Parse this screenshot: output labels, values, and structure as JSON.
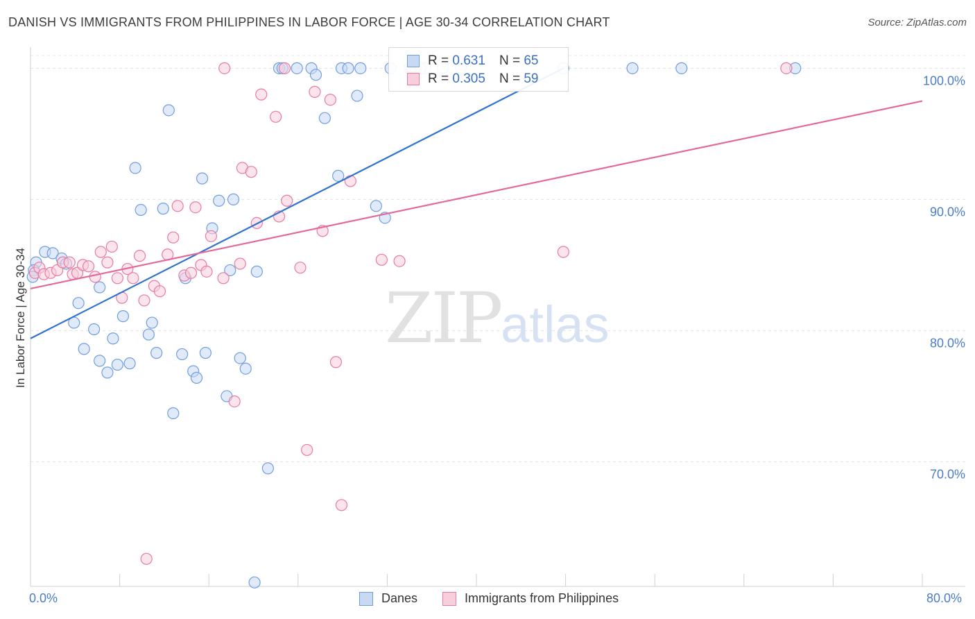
{
  "title": "DANISH VS IMMIGRANTS FROM PHILIPPINES IN LABOR FORCE | AGE 30-34 CORRELATION CHART",
  "source": "Source: ZipAtlas.com",
  "watermark": {
    "zip": "ZIP",
    "atlas": "atlas"
  },
  "colors": {
    "danes": "#6f9de0",
    "danes_fill": "#c7d9f3",
    "phil": "#e87aa0",
    "phil_fill": "#f8cedc",
    "blue_text": "#3a6fc4"
  },
  "legend": {
    "danes": {
      "r_label": "R = ",
      "r": "0.631",
      "n_label": "N = ",
      "n": "65"
    },
    "phil": {
      "r_label": "R = ",
      "r": "0.305",
      "n_label": "N = ",
      "n": "59"
    }
  },
  "bottom_legend": {
    "danes": "Danes",
    "phil": "Immigrants from Philippines"
  },
  "chart_data": {
    "type": "scatter",
    "title": "DANISH VS IMMIGRANTS FROM PHILIPPINES IN LABOR FORCE | AGE 30-34 CORRELATION CHART",
    "xlabel": "",
    "ylabel": "In Labor Force | Age 30-34",
    "xlim": [
      0,
      80
    ],
    "ylim": [
      60.5,
      101.5
    ],
    "x_ticks": [
      "0.0%",
      "80.0%"
    ],
    "y_ticks": [
      {
        "value": 70,
        "label": "70.0%"
      },
      {
        "value": 80,
        "label": "80.0%"
      },
      {
        "value": 90,
        "label": "90.0%"
      },
      {
        "value": 100,
        "label": "100.0%"
      }
    ],
    "grid": true,
    "series": [
      {
        "name": "Danes",
        "r": 0.631,
        "n": 65,
        "trend": {
          "x": [
            0,
            47.8
          ],
          "y": [
            79.4,
            100.0
          ]
        },
        "points": [
          [
            0.5,
            85.2
          ],
          [
            0.3,
            84.6
          ],
          [
            0.2,
            84.1
          ],
          [
            1.3,
            86.0
          ],
          [
            2.0,
            85.9
          ],
          [
            2.8,
            85.5
          ],
          [
            3.2,
            85.1
          ],
          [
            4.3,
            82.1
          ],
          [
            3.9,
            80.6
          ],
          [
            5.7,
            80.1
          ],
          [
            4.8,
            78.6
          ],
          [
            6.2,
            83.3
          ],
          [
            6.2,
            77.7
          ],
          [
            6.9,
            76.8
          ],
          [
            7.4,
            79.4
          ],
          [
            7.8,
            77.4
          ],
          [
            8.3,
            81.1
          ],
          [
            8.9,
            77.5
          ],
          [
            9.4,
            92.4
          ],
          [
            9.9,
            89.2
          ],
          [
            10.6,
            79.7
          ],
          [
            10.9,
            80.6
          ],
          [
            11.3,
            78.3
          ],
          [
            11.9,
            89.3
          ],
          [
            12.4,
            96.8
          ],
          [
            12.8,
            73.7
          ],
          [
            13.6,
            78.2
          ],
          [
            13.9,
            84.0
          ],
          [
            14.6,
            76.9
          ],
          [
            14.9,
            76.4
          ],
          [
            15.4,
            91.6
          ],
          [
            15.7,
            78.3
          ],
          [
            16.3,
            87.8
          ],
          [
            16.9,
            89.9
          ],
          [
            17.6,
            75.0
          ],
          [
            17.9,
            84.6
          ],
          [
            18.2,
            90.0
          ],
          [
            18.8,
            77.9
          ],
          [
            19.3,
            77.1
          ],
          [
            20.3,
            84.5
          ],
          [
            20.1,
            60.8
          ],
          [
            21.3,
            69.5
          ],
          [
            22.3,
            100.0
          ],
          [
            22.6,
            100.0
          ],
          [
            23.9,
            100.0
          ],
          [
            25.2,
            100.0
          ],
          [
            25.6,
            99.5
          ],
          [
            26.4,
            96.2
          ],
          [
            27.6,
            91.8
          ],
          [
            27.9,
            100.0
          ],
          [
            28.5,
            100.0
          ],
          [
            29.3,
            97.9
          ],
          [
            29.6,
            100.0
          ],
          [
            31.0,
            89.5
          ],
          [
            31.8,
            88.6
          ],
          [
            32.3,
            100.0
          ],
          [
            34.0,
            100.0
          ],
          [
            34.6,
            100.0
          ],
          [
            35.4,
            100.0
          ],
          [
            37.0,
            100.0
          ],
          [
            38.6,
            100.0
          ],
          [
            47.8,
            100.0
          ],
          [
            54.0,
            100.0
          ],
          [
            58.4,
            100.0
          ],
          [
            68.6,
            100.0
          ]
        ]
      },
      {
        "name": "Immigrants from Philippines",
        "r": 0.305,
        "n": 59,
        "trend": {
          "x": [
            0,
            80
          ],
          "y": [
            83.2,
            97.5
          ]
        },
        "points": [
          [
            0.4,
            84.4
          ],
          [
            0.8,
            84.8
          ],
          [
            1.2,
            84.3
          ],
          [
            1.8,
            84.4
          ],
          [
            2.4,
            84.6
          ],
          [
            2.9,
            85.2
          ],
          [
            3.5,
            85.2
          ],
          [
            3.8,
            84.3
          ],
          [
            4.2,
            84.4
          ],
          [
            4.7,
            85.0
          ],
          [
            5.2,
            84.9
          ],
          [
            5.8,
            84.1
          ],
          [
            6.3,
            86.0
          ],
          [
            6.9,
            85.2
          ],
          [
            7.3,
            86.4
          ],
          [
            7.8,
            84.0
          ],
          [
            8.2,
            82.5
          ],
          [
            8.7,
            84.7
          ],
          [
            9.2,
            84.0
          ],
          [
            9.8,
            85.7
          ],
          [
            10.2,
            82.3
          ],
          [
            11.1,
            83.4
          ],
          [
            11.6,
            83.0
          ],
          [
            12.3,
            85.8
          ],
          [
            12.8,
            87.1
          ],
          [
            13.2,
            89.5
          ],
          [
            13.8,
            84.2
          ],
          [
            14.4,
            84.4
          ],
          [
            14.8,
            89.4
          ],
          [
            15.3,
            85.0
          ],
          [
            15.8,
            84.5
          ],
          [
            16.2,
            87.2
          ],
          [
            17.4,
            100.0
          ],
          [
            17.3,
            84.0
          ],
          [
            18.8,
            85.1
          ],
          [
            19.0,
            92.4
          ],
          [
            19.8,
            92.1
          ],
          [
            20.3,
            88.2
          ],
          [
            20.7,
            98.0
          ],
          [
            18.3,
            74.6
          ],
          [
            22.0,
            96.3
          ],
          [
            22.3,
            88.7
          ],
          [
            22.8,
            100.0
          ],
          [
            23.0,
            89.9
          ],
          [
            24.2,
            84.8
          ],
          [
            24.8,
            70.9
          ],
          [
            25.5,
            98.2
          ],
          [
            26.2,
            87.6
          ],
          [
            26.9,
            97.6
          ],
          [
            27.4,
            77.6
          ],
          [
            27.9,
            66.7
          ],
          [
            28.7,
            91.4
          ],
          [
            31.5,
            85.4
          ],
          [
            33.1,
            85.3
          ],
          [
            34.2,
            100.0
          ],
          [
            35.0,
            100.0
          ],
          [
            47.8,
            86.0
          ],
          [
            67.8,
            100.0
          ],
          [
            10.4,
            62.6
          ]
        ]
      }
    ]
  }
}
